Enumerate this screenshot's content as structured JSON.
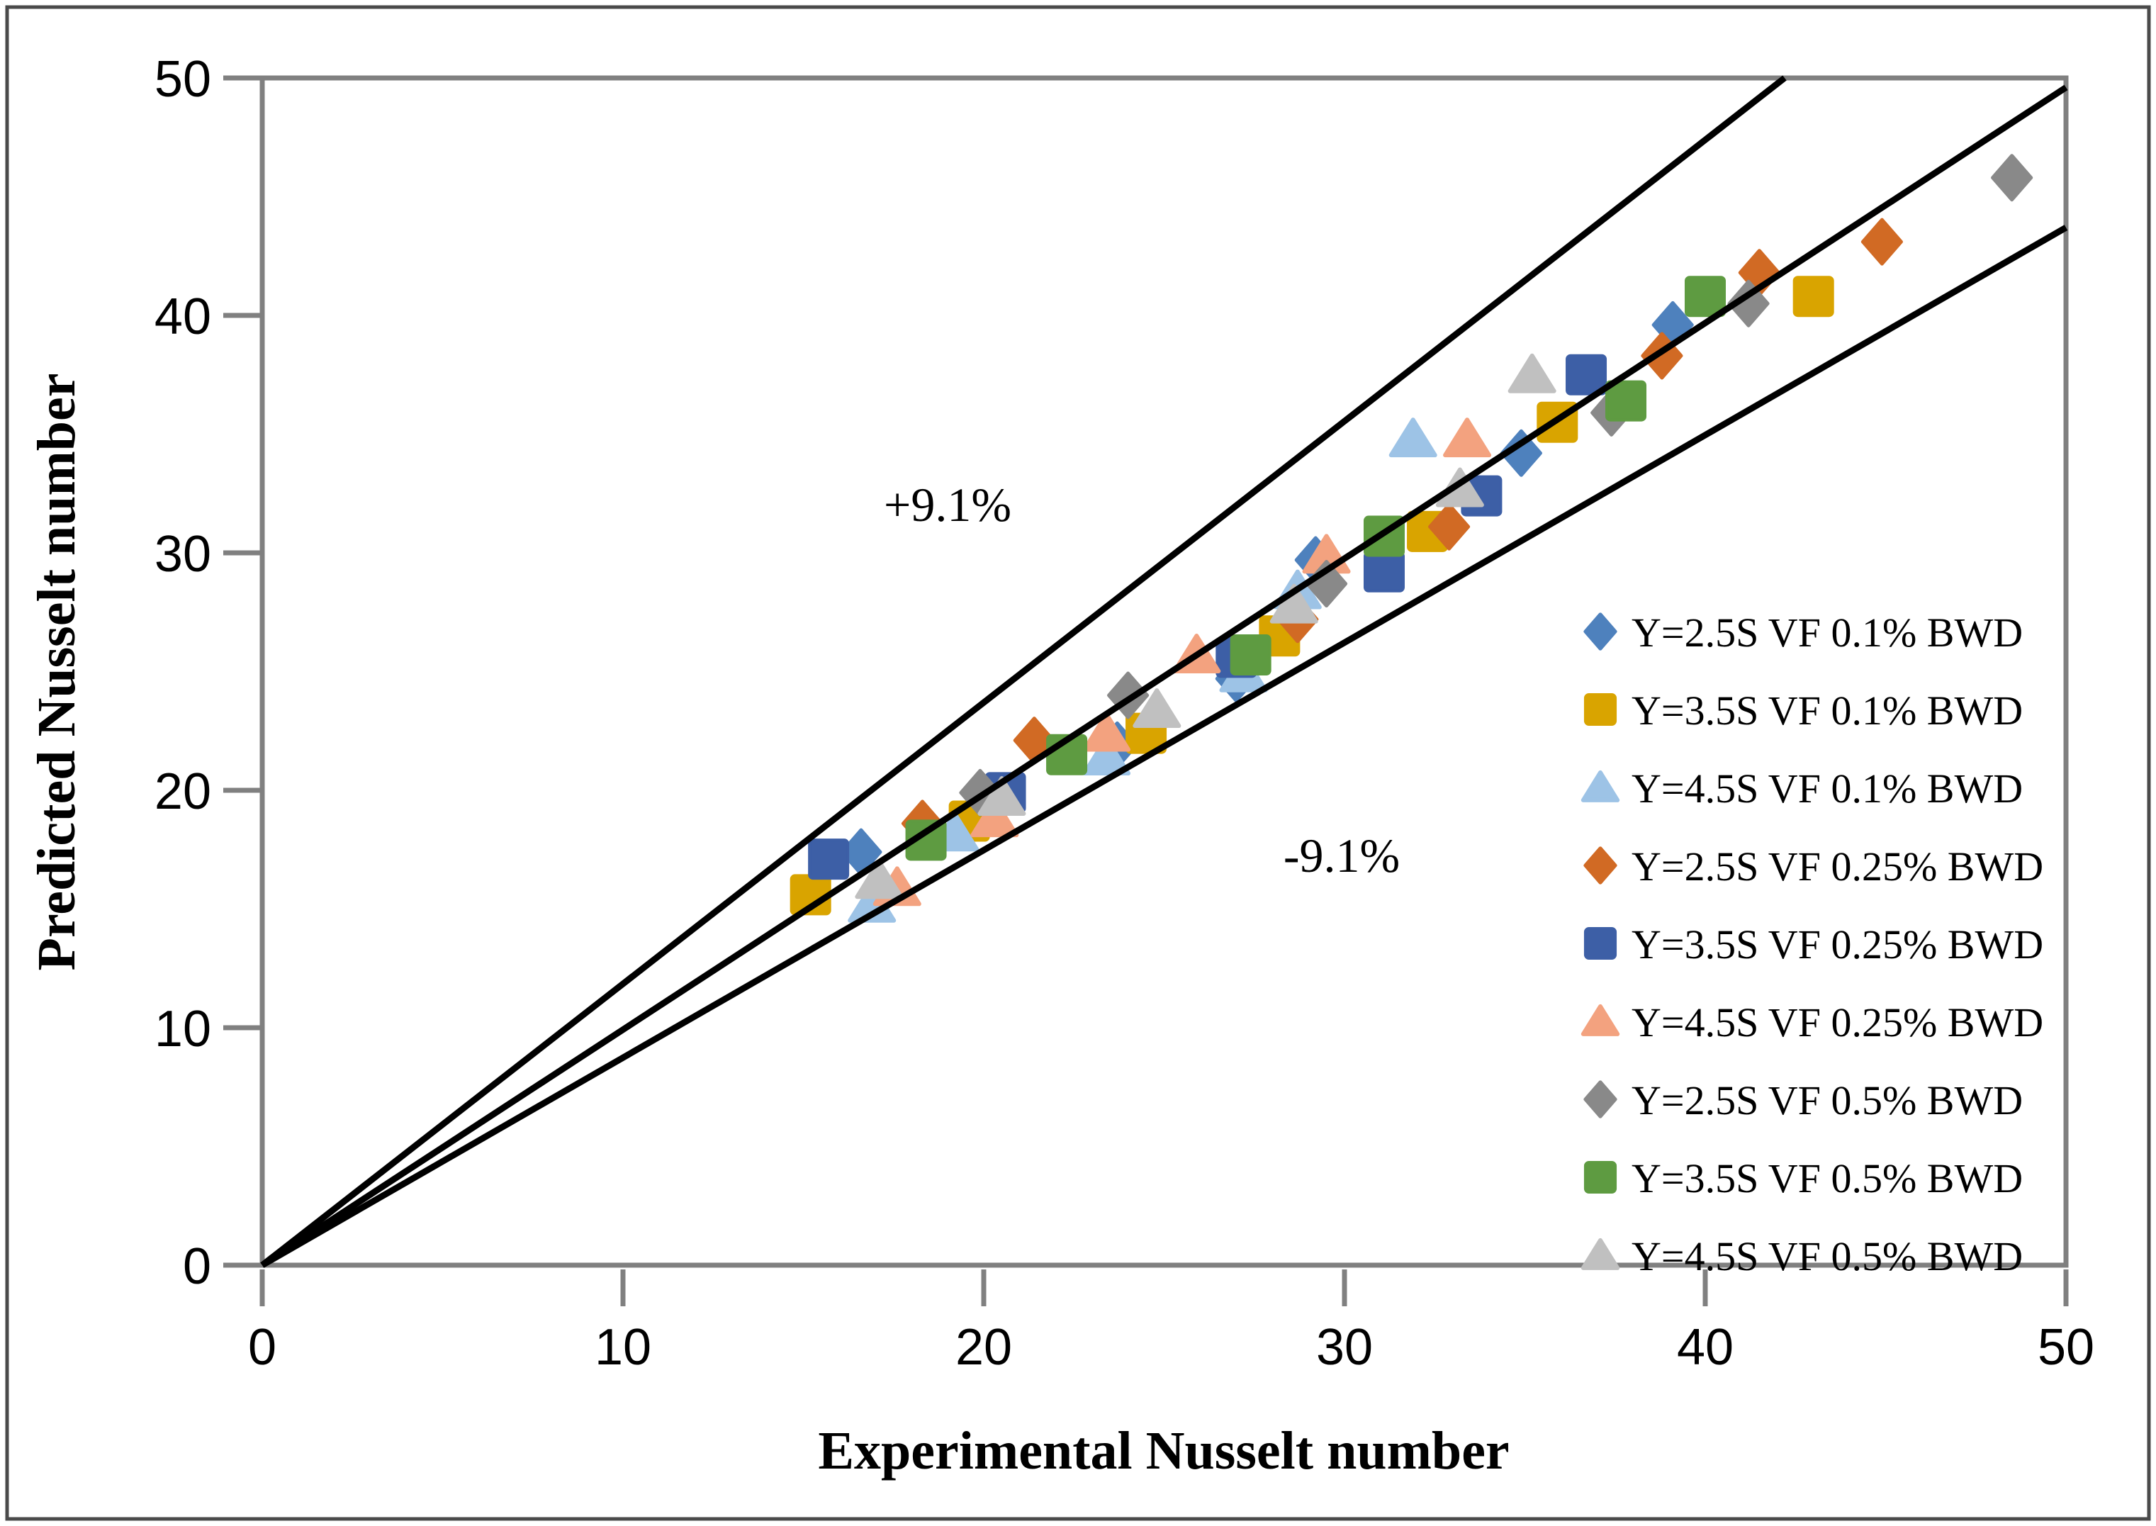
{
  "figure": {
    "background": "#ffffff",
    "border_color": "#4a4a4a",
    "axis_color": "#808080"
  },
  "chart_data": {
    "type": "scatter",
    "title": "",
    "xlabel": "Experimental Nusselt number",
    "ylabel": "Predicted Nusselt number",
    "xlim": [
      0,
      50
    ],
    "ylim": [
      0,
      50
    ],
    "x_ticks": [
      0,
      10,
      20,
      30,
      40,
      50
    ],
    "y_ticks": [
      0,
      10,
      20,
      30,
      40,
      50
    ],
    "grid": false,
    "legend_position": "inside-right-middle",
    "reference_lines": [
      {
        "name": "plus-9.1-percent-line",
        "from": [
          0,
          0
        ],
        "to": [
          42.2,
          50
        ],
        "color": "#000000"
      },
      {
        "name": "equality-line",
        "from": [
          0,
          0
        ],
        "to": [
          50,
          49.6
        ],
        "color": "#000000"
      },
      {
        "name": "minus-9.1-percent-line",
        "from": [
          0,
          0
        ],
        "to": [
          50,
          43.7
        ],
        "color": "#000000"
      }
    ],
    "annotations": [
      {
        "text": "+9.1%",
        "x": 19.0,
        "y": 32.0
      },
      {
        "text": "-9.1%",
        "x": 29.9,
        "y": 17.2
      }
    ],
    "series": [
      {
        "label": "Y=2.5S VF 0.1% BWD",
        "marker": "diamond",
        "color": "#4e81bd",
        "points": [
          [
            16.6,
            17.4
          ],
          [
            23.7,
            21.9
          ],
          [
            27.0,
            24.7
          ],
          [
            29.2,
            29.7
          ],
          [
            34.9,
            34.2
          ],
          [
            39.1,
            39.6
          ]
        ]
      },
      {
        "label": "Y=3.5S VF 0.1% BWD",
        "marker": "square",
        "color": "#d9a400",
        "points": [
          [
            15.2,
            15.6
          ],
          [
            19.6,
            18.7
          ],
          [
            24.5,
            22.4
          ],
          [
            28.2,
            26.5
          ],
          [
            32.3,
            30.9
          ],
          [
            35.9,
            35.5
          ],
          [
            43.0,
            40.8
          ]
        ]
      },
      {
        "label": "Y=4.5S VF 0.1% BWD",
        "marker": "triangle",
        "color": "#9dc3e6",
        "points": [
          [
            16.9,
            15.2
          ],
          [
            19.2,
            18.2
          ],
          [
            23.4,
            21.4
          ],
          [
            27.2,
            24.9
          ],
          [
            28.7,
            28.4
          ],
          [
            31.9,
            34.8
          ]
        ]
      },
      {
        "label": "Y=2.5S VF 0.25% BWD",
        "marker": "diamond",
        "color": "#d16a24",
        "points": [
          [
            18.3,
            18.6
          ],
          [
            21.4,
            22.1
          ],
          [
            28.7,
            27.2
          ],
          [
            32.9,
            31.1
          ],
          [
            38.8,
            38.3
          ],
          [
            41.5,
            41.8
          ],
          [
            44.9,
            43.1
          ]
        ]
      },
      {
        "label": "Y=3.5S VF 0.25% BWD",
        "marker": "square",
        "color": "#3d5fa6",
        "points": [
          [
            15.7,
            17.1
          ],
          [
            20.6,
            19.9
          ],
          [
            27.0,
            25.6
          ],
          [
            31.1,
            29.2
          ],
          [
            33.8,
            32.4
          ],
          [
            36.7,
            37.5
          ]
        ]
      },
      {
        "label": "Y=4.5S VF 0.25% BWD",
        "marker": "triangle",
        "color": "#f3a27f",
        "points": [
          [
            17.6,
            15.9
          ],
          [
            20.3,
            18.8
          ],
          [
            23.4,
            22.4
          ],
          [
            25.9,
            25.7
          ],
          [
            29.5,
            29.9
          ],
          [
            33.4,
            34.8
          ]
        ]
      },
      {
        "label": "Y=2.5S VF 0.5% BWD",
        "marker": "diamond",
        "color": "#898989",
        "points": [
          [
            19.9,
            19.9
          ],
          [
            24.0,
            24.0
          ],
          [
            29.5,
            28.7
          ],
          [
            37.4,
            35.9
          ],
          [
            41.2,
            40.5
          ],
          [
            48.5,
            45.8
          ]
        ]
      },
      {
        "label": "Y=3.5S VF 0.5% BWD",
        "marker": "square",
        "color": "#5e9b41",
        "points": [
          [
            18.4,
            17.9
          ],
          [
            22.3,
            21.5
          ],
          [
            27.4,
            25.7
          ],
          [
            31.1,
            30.7
          ],
          [
            37.8,
            36.4
          ],
          [
            40.0,
            40.8
          ]
        ]
      },
      {
        "label": "Y=4.5S VF 0.5% BWD",
        "marker": "triangle",
        "color": "#c0c0c0",
        "points": [
          [
            17.1,
            16.2
          ],
          [
            20.5,
            19.7
          ],
          [
            24.8,
            23.4
          ],
          [
            28.6,
            27.8
          ],
          [
            33.2,
            32.7
          ],
          [
            35.2,
            37.5
          ]
        ]
      }
    ]
  }
}
